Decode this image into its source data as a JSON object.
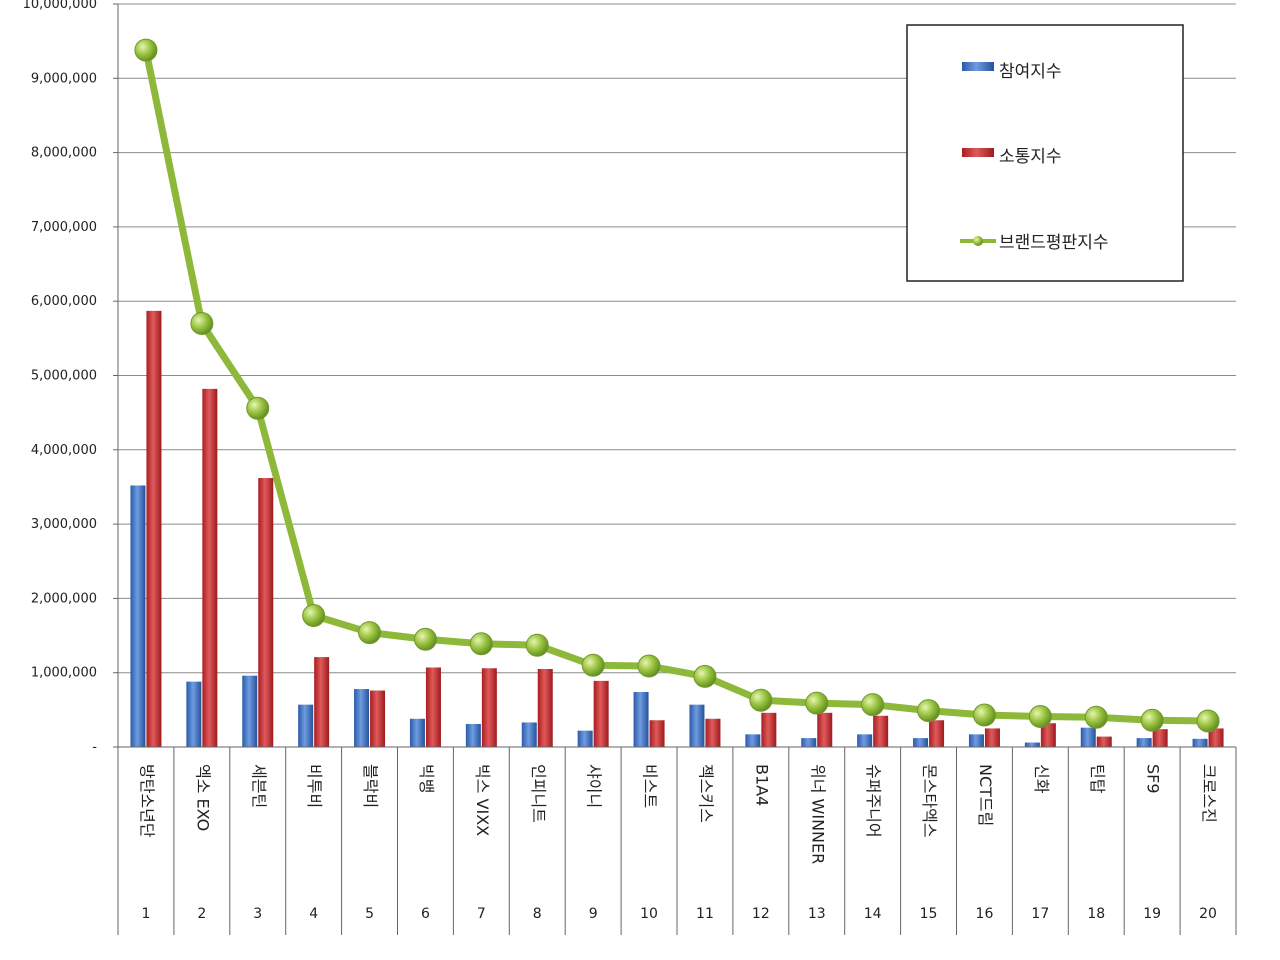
{
  "chart_data": {
    "type": "bar",
    "categories": [
      "방탄소년단",
      "엑소 EXO",
      "세븐틴",
      "비투비",
      "블락비",
      "빅뱅",
      "빅스 VIXX",
      "인피니트",
      "샤이니",
      "비스트",
      "젝스키스",
      "B1A4",
      "위너 WINNER",
      "슈퍼주니어",
      "몬스타엑스",
      "NCT드림",
      "신화",
      "틴탑",
      "SF9",
      "크로스진"
    ],
    "ranks": [
      "1",
      "2",
      "3",
      "4",
      "5",
      "6",
      "7",
      "8",
      "9",
      "10",
      "11",
      "12",
      "13",
      "14",
      "15",
      "16",
      "17",
      "18",
      "19",
      "20"
    ],
    "series": [
      {
        "name": "참여지수",
        "kind": "bar",
        "color": "#3d6fc2",
        "values": [
          3520000,
          880000,
          960000,
          570000,
          780000,
          380000,
          310000,
          330000,
          220000,
          740000,
          570000,
          170000,
          120000,
          170000,
          120000,
          170000,
          60000,
          260000,
          120000,
          110000
        ]
      },
      {
        "name": "소통지수",
        "kind": "bar",
        "color": "#c8292c",
        "values": [
          5870000,
          4820000,
          3620000,
          1210000,
          760000,
          1070000,
          1060000,
          1050000,
          890000,
          360000,
          380000,
          460000,
          460000,
          420000,
          360000,
          250000,
          320000,
          140000,
          240000,
          250000
        ]
      },
      {
        "name": "브랜드평판지수",
        "kind": "line",
        "color": "#8db83a",
        "values": [
          9380000,
          5700000,
          4560000,
          1770000,
          1540000,
          1450000,
          1390000,
          1370000,
          1100000,
          1090000,
          950000,
          630000,
          590000,
          570000,
          490000,
          430000,
          410000,
          400000,
          360000,
          350000
        ]
      }
    ],
    "yticks": [
      "-",
      "1,000,000",
      "2,000,000",
      "3,000,000",
      "4,000,000",
      "5,000,000",
      "6,000,000",
      "7,000,000",
      "8,000,000",
      "9,000,000",
      "10,000,000"
    ],
    "ylim": [
      0,
      10000000
    ],
    "grid": true,
    "legend_position": "top-right",
    "title": "",
    "xlabel": "",
    "ylabel": ""
  }
}
